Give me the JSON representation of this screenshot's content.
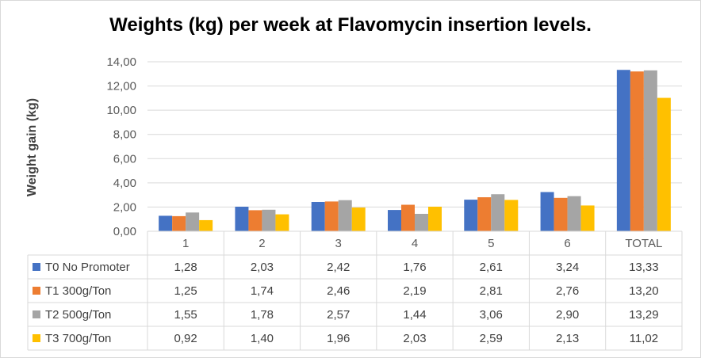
{
  "chart_data": {
    "type": "bar",
    "title": "Weights (kg) per week at Flavomycin insertion levels.",
    "ylabel": "Weight gain (kg)",
    "xlabel": "",
    "categories": [
      "1",
      "2",
      "3",
      "4",
      "5",
      "6",
      "TOTAL"
    ],
    "ylim": [
      0,
      14
    ],
    "yticks": [
      "0,00",
      "2,00",
      "4,00",
      "6,00",
      "8,00",
      "10,00",
      "12,00",
      "14,00"
    ],
    "grid": true,
    "legend": "data-table",
    "series": [
      {
        "name": "T0 No Promoter",
        "color": "#4472c4",
        "values": [
          1.28,
          2.03,
          2.42,
          1.76,
          2.61,
          3.24,
          13.33
        ],
        "labels": [
          "1,28",
          "2,03",
          "2,42",
          "1,76",
          "2,61",
          "3,24",
          "13,33"
        ]
      },
      {
        "name": "T1 300g/Ton",
        "color": "#ed7d31",
        "values": [
          1.25,
          1.74,
          2.46,
          2.19,
          2.81,
          2.76,
          13.2
        ],
        "labels": [
          "1,25",
          "1,74",
          "2,46",
          "2,19",
          "2,81",
          "2,76",
          "13,20"
        ]
      },
      {
        "name": "T2 500g/Ton",
        "color": "#a5a5a5",
        "values": [
          1.55,
          1.78,
          2.57,
          1.44,
          3.06,
          2.9,
          13.29
        ],
        "labels": [
          "1,55",
          "1,78",
          "2,57",
          "1,44",
          "3,06",
          "2,90",
          "13,29"
        ]
      },
      {
        "name": "T3 700g/Ton",
        "color": "#ffc000",
        "values": [
          0.92,
          1.4,
          1.96,
          2.03,
          2.59,
          2.13,
          11.02
        ],
        "labels": [
          "0,92",
          "1,40",
          "1,96",
          "2,03",
          "2,59",
          "2,13",
          "11,02"
        ]
      }
    ]
  }
}
